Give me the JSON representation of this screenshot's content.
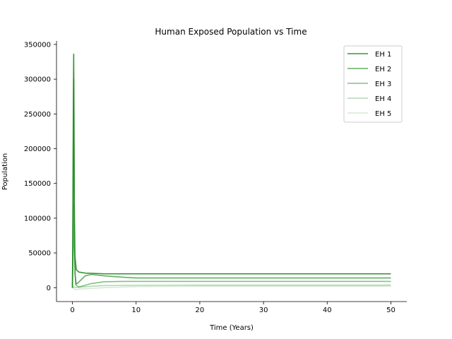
{
  "chart_data": {
    "type": "line",
    "title": "Human Exposed Population vs Time",
    "xlabel": "Time (Years)",
    "ylabel": "Population",
    "xlim": [
      -2.5,
      52.5
    ],
    "ylim": [
      -20000,
      355000
    ],
    "xticks": [
      0,
      10,
      20,
      30,
      40,
      50
    ],
    "yticks": [
      0,
      50000,
      100000,
      150000,
      200000,
      250000,
      300000,
      350000
    ],
    "grid": false,
    "legend_position": "top-right",
    "series": [
      {
        "name": "EH 1",
        "color": "#228B22",
        "opacity": 0.9,
        "x": [
          0,
          0.05,
          0.1,
          0.15,
          0.2,
          0.25,
          0.3,
          0.4,
          0.6,
          1,
          2,
          5,
          10,
          20,
          30,
          40,
          50
        ],
        "y": [
          0,
          60000,
          170000,
          280000,
          336000,
          250000,
          120000,
          45000,
          26000,
          22500,
          21000,
          20000,
          20000,
          20000,
          20000,
          20000,
          20000
        ]
      },
      {
        "name": "EH 2",
        "color": "#228B22",
        "opacity": 0.7,
        "x": [
          0,
          0.05,
          0.1,
          0.15,
          0.2,
          0.25,
          0.3,
          0.4,
          0.6,
          1,
          2,
          3,
          5,
          8,
          10,
          20,
          30,
          40,
          50
        ],
        "y": [
          0,
          50000,
          140000,
          240000,
          300000,
          200000,
          90000,
          20000,
          5000,
          8000,
          17000,
          19000,
          17000,
          15000,
          14000,
          14000,
          14000,
          14000,
          14000
        ]
      },
      {
        "name": "EH 3",
        "color": "#228B22",
        "opacity": 0.55,
        "x": [
          0,
          0.1,
          0.2,
          0.3,
          0.5,
          1,
          2,
          3,
          5,
          8,
          10,
          20,
          30,
          40,
          50
        ],
        "y": [
          0,
          40000,
          120000,
          60000,
          4000,
          1000,
          3500,
          6000,
          8500,
          9000,
          9000,
          9000,
          9000,
          9000,
          9000
        ]
      },
      {
        "name": "EH 4",
        "color": "#228B22",
        "opacity": 0.35,
        "x": [
          0,
          0.2,
          0.5,
          1,
          3,
          5,
          10,
          20,
          30,
          40,
          50
        ],
        "y": [
          0,
          1000,
          500,
          600,
          2000,
          3000,
          3500,
          3700,
          3700,
          3700,
          3700
        ]
      },
      {
        "name": "EH 5",
        "color": "#228B22",
        "opacity": 0.18,
        "x": [
          0,
          0.5,
          1,
          3,
          5,
          10,
          20,
          30,
          40,
          50
        ],
        "y": [
          0,
          -3000,
          -2000,
          -1000,
          0,
          1500,
          2000,
          2000,
          2000,
          2000
        ]
      }
    ]
  }
}
